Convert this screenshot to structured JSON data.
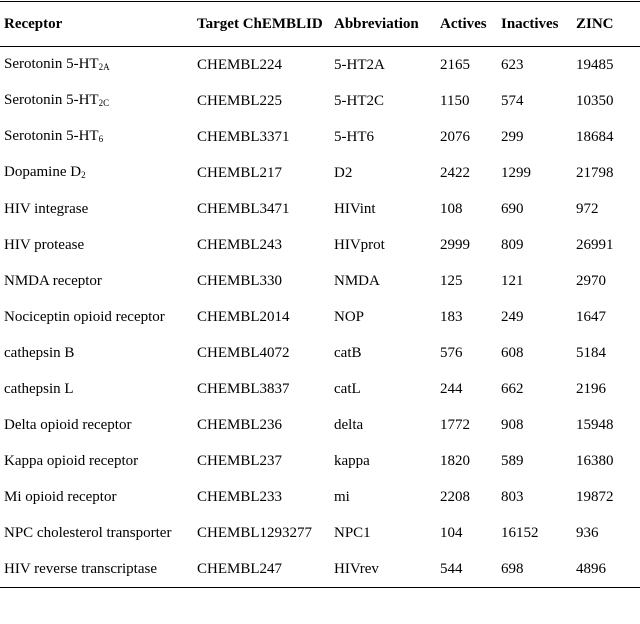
{
  "table": {
    "header": [
      "Receptor",
      "Target ChEMBLID",
      "Abbreviation",
      "Actives",
      "Inactives",
      "ZINC"
    ],
    "rows": [
      [
        {
          "text": "Serotonin 5-HT",
          "sub": "2A"
        },
        "CHEMBL224",
        "5-HT2A",
        2165,
        623,
        19485
      ],
      [
        {
          "text": "Serotonin 5-HT",
          "sub": "2C"
        },
        "CHEMBL225",
        "5-HT2C",
        1150,
        574,
        10350
      ],
      [
        {
          "text": "Serotonin 5-HT",
          "sub": "6"
        },
        "CHEMBL3371",
        "5-HT6",
        2076,
        299,
        18684
      ],
      [
        {
          "text": "Dopamine D",
          "sub": "2"
        },
        "CHEMBL217",
        "D2",
        2422,
        1299,
        21798
      ],
      [
        "HIV integrase",
        "CHEMBL3471",
        "HIVint",
        108,
        690,
        972
      ],
      [
        "HIV protease",
        "CHEMBL243",
        "HIVprot",
        2999,
        809,
        26991
      ],
      [
        "NMDA receptor",
        "CHEMBL330",
        "NMDA",
        125,
        121,
        2970
      ],
      [
        "Nociceptin opioid receptor",
        "CHEMBL2014",
        "NOP",
        183,
        249,
        1647
      ],
      [
        "cathepsin B",
        "CHEMBL4072",
        "catB",
        576,
        608,
        5184
      ],
      [
        "cathepsin L",
        "CHEMBL3837",
        "catL",
        244,
        662,
        2196
      ],
      [
        "Delta opioid receptor",
        "CHEMBL236",
        "delta",
        1772,
        908,
        15948
      ],
      [
        "Kappa opioid receptor",
        "CHEMBL237",
        "kappa",
        1820,
        589,
        16380
      ],
      [
        "Mi opioid receptor",
        "CHEMBL233",
        "mi",
        2208,
        803,
        19872
      ],
      [
        "NPC cholesterol transporter",
        "CHEMBL1293277",
        "NPC1",
        104,
        16152,
        936
      ],
      [
        "HIV reverse transcriptase",
        "CHEMBL247",
        "HIVrev",
        544,
        698,
        4896
      ]
    ]
  }
}
